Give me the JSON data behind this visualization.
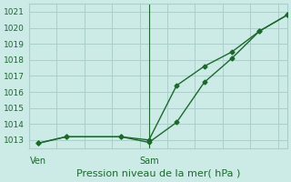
{
  "title": "Pression niveau de la mer( hPa )",
  "bg_color": "#cceae6",
  "grid_color": "#aacfcb",
  "line_color": "#1a6b2a",
  "ylim": [
    1012.5,
    1021.5
  ],
  "yticks": [
    1013,
    1014,
    1015,
    1016,
    1017,
    1018,
    1019,
    1020,
    1021
  ],
  "vline_x": 24,
  "xtick_labels": [
    "Ven",
    "Sam"
  ],
  "xtick_pos": [
    0,
    24
  ],
  "xlim": [
    -2,
    54
  ],
  "line1_x": [
    0,
    6,
    18,
    24,
    30,
    36,
    42,
    48,
    54
  ],
  "line1_y": [
    1012.8,
    1013.2,
    1013.2,
    1013.0,
    1016.4,
    1017.6,
    1018.5,
    1019.8,
    1020.8
  ],
  "line2_x": [
    0,
    6,
    18,
    24,
    30,
    36,
    42,
    48,
    54
  ],
  "line2_y": [
    1012.8,
    1013.2,
    1013.2,
    1012.85,
    1014.1,
    1016.6,
    1018.1,
    1019.8,
    1020.8
  ],
  "marker": "D",
  "marker_size": 2.5,
  "line_width": 1.0,
  "xlabel_fontsize": 8,
  "ytick_fontsize": 6.5,
  "xtick_fontsize": 7
}
